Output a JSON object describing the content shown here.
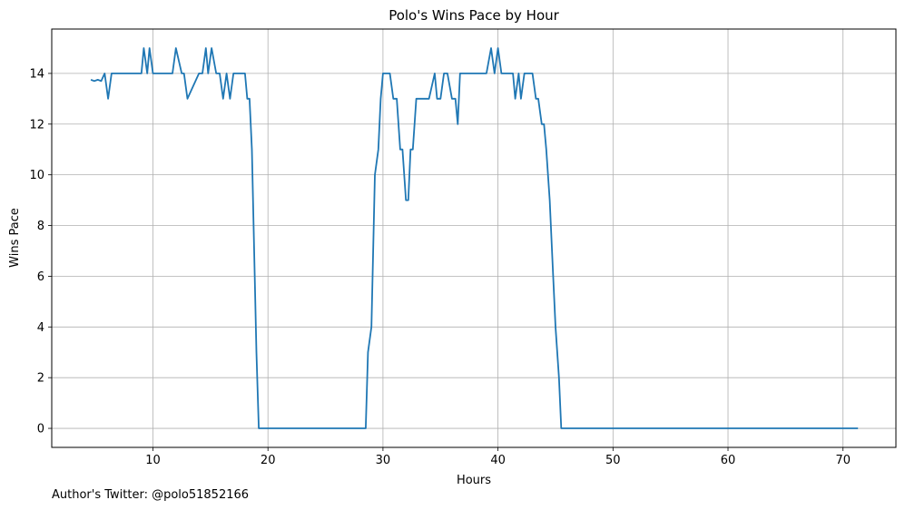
{
  "chart_data": {
    "type": "line",
    "title": "Polo's Wins Pace by Hour",
    "xlabel": "Hours",
    "ylabel": "Wins Pace",
    "xlim": [
      1.2,
      74.6
    ],
    "ylim": [
      -0.75,
      15.75
    ],
    "xticks": [
      10,
      20,
      30,
      40,
      50,
      60,
      70
    ],
    "yticks": [
      0,
      2,
      4,
      6,
      8,
      10,
      12,
      14
    ],
    "grid": true,
    "line_color": "#1f77b4",
    "series": [
      {
        "x": [
          4.6,
          4.9,
          5.2,
          5.5,
          5.8,
          6.1,
          6.4,
          7.0,
          8.0,
          9.0,
          9.2,
          9.5,
          9.7,
          10.0,
          11.0,
          11.7,
          12.0,
          12.5,
          12.7,
          13.0,
          14.0,
          14.3,
          14.6,
          14.8,
          15.1,
          15.5,
          15.8,
          16.1,
          16.4,
          16.7,
          17.0,
          17.5,
          17.8,
          18.0,
          18.2,
          18.4,
          18.6,
          18.8,
          19.0,
          19.2,
          19.5,
          20.0,
          25.0,
          28.5,
          28.7,
          29.0,
          29.3,
          29.6,
          29.8,
          30.0,
          30.3,
          30.6,
          30.9,
          31.2,
          31.5,
          31.7,
          32.0,
          32.2,
          32.4,
          32.6,
          32.9,
          33.1,
          33.4,
          34.0,
          34.5,
          34.7,
          35.0,
          35.3,
          35.6,
          36.0,
          36.3,
          36.5,
          36.7,
          37.0,
          38.0,
          39.0,
          39.4,
          39.7,
          40.0,
          40.3,
          41.0,
          41.3,
          41.5,
          41.8,
          42.0,
          42.3,
          42.6,
          43.0,
          43.3,
          43.5,
          43.8,
          44.0,
          44.2,
          44.5,
          44.8,
          45.0,
          45.3,
          45.5,
          45.8,
          46.0,
          50.0,
          60.0,
          70.0,
          71.3
        ],
        "y": [
          13.75,
          13.7,
          13.75,
          13.7,
          14,
          13,
          14,
          14,
          14,
          14,
          15,
          14,
          15,
          14,
          14,
          14,
          15,
          14,
          14,
          13,
          14,
          14,
          15,
          14,
          15,
          14,
          14,
          13,
          14,
          13,
          14,
          14,
          14,
          14,
          13,
          13,
          11,
          7,
          3,
          0,
          0,
          0,
          0,
          0,
          3,
          4,
          10,
          11,
          13,
          14,
          14,
          14,
          13,
          13,
          11,
          11,
          9,
          9,
          11,
          11,
          13,
          13,
          13,
          13,
          14,
          13,
          13,
          14,
          14,
          13,
          13,
          12,
          14,
          14,
          14,
          14,
          15,
          14,
          15,
          14,
          14,
          14,
          13,
          14,
          13,
          14,
          14,
          14,
          13,
          13,
          12,
          12,
          11,
          9,
          6,
          4,
          2,
          0,
          0,
          0,
          0,
          0,
          0,
          0
        ]
      }
    ]
  },
  "footnote": "Author's Twitter: @polo51852166"
}
